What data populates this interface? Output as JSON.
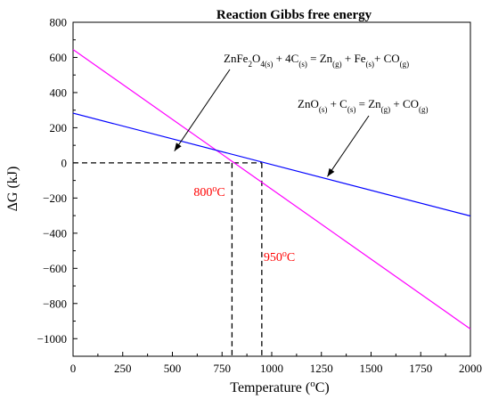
{
  "chart_data": {
    "type": "line",
    "title": "Reaction Gibbs free energy",
    "xlabel": {
      "main": "Temperature (",
      "sup": "o",
      "tail": "C)"
    },
    "ylabel": "ΔG (kJ)",
    "xlim": [
      0,
      2000
    ],
    "ylim": [
      -1100,
      800
    ],
    "x_ticks": [
      0,
      250,
      500,
      750,
      1000,
      1250,
      1500,
      1750,
      2000
    ],
    "y_ticks": [
      800,
      600,
      400,
      200,
      0,
      -200,
      -400,
      -600,
      -800,
      -1000
    ],
    "grid": false,
    "series": [
      {
        "color": "#ff00ff",
        "x": [
          0,
          2000
        ],
        "y": [
          645,
          -945
        ]
      },
      {
        "color": "#0000ff",
        "x": [
          0,
          2000
        ],
        "y": [
          283,
          -302
        ]
      }
    ],
    "annotations": [
      {
        "type": "equation",
        "text_parts": [
          {
            "t": "ZnFe",
            "s": "n"
          },
          {
            "t": "2",
            "s": "sub"
          },
          {
            "t": "O",
            "s": "n"
          },
          {
            "t": "4(s)",
            "s": "sub"
          },
          {
            "t": " + 4C",
            "s": "n"
          },
          {
            "t": "(s)",
            "s": "sub"
          },
          {
            "t": " = Zn",
            "s": "n"
          },
          {
            "t": "(g)",
            "s": "sub"
          },
          {
            "t": " + Fe",
            "s": "n"
          },
          {
            "t": "(s)",
            "s": "sub"
          },
          {
            "t": "+ CO",
            "s": "n"
          },
          {
            "t": "(g)",
            "s": "sub"
          }
        ],
        "arrow_to": [
          510,
          67
        ]
      },
      {
        "type": "equation",
        "text_parts": [
          {
            "t": "ZnO",
            "s": "n"
          },
          {
            "t": "(s)",
            "s": "sub"
          },
          {
            "t": " + C",
            "s": "n"
          },
          {
            "t": "(s)",
            "s": "sub"
          },
          {
            "t": " = Zn",
            "s": "n"
          },
          {
            "t": "(g)",
            "s": "sub"
          },
          {
            "t": " + CO",
            "s": "n"
          },
          {
            "t": "(g)",
            "s": "sub"
          }
        ],
        "arrow_to": [
          1280,
          -78
        ]
      }
    ],
    "markers": [
      {
        "x": 800,
        "y": 0,
        "label_num": "800",
        "label_sup": "o",
        "label_tail": "C",
        "color": "#ff0000"
      },
      {
        "x": 950,
        "y": 0,
        "label_num": "950",
        "label_sup": "o",
        "label_tail": "C",
        "color": "#ff0000"
      }
    ]
  }
}
